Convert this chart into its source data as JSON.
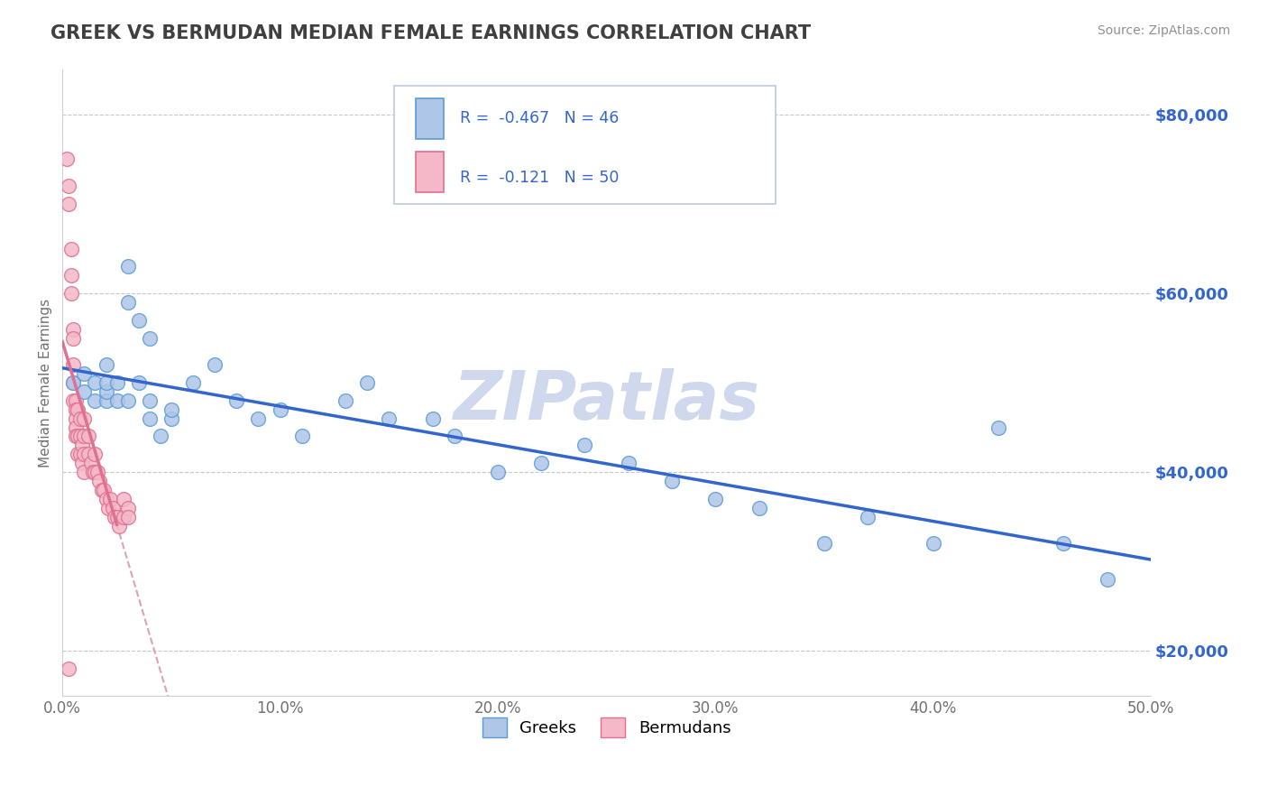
{
  "title": "GREEK VS BERMUDAN MEDIAN FEMALE EARNINGS CORRELATION CHART",
  "source_text": "Source: ZipAtlas.com",
  "ylabel": "Median Female Earnings",
  "xlim": [
    0.0,
    0.5
  ],
  "ylim": [
    15000,
    85000
  ],
  "xtick_labels": [
    "0.0%",
    "10.0%",
    "20.0%",
    "30.0%",
    "40.0%",
    "50.0%"
  ],
  "xtick_vals": [
    0.0,
    0.1,
    0.2,
    0.3,
    0.4,
    0.5
  ],
  "ytick_labels": [
    "$20,000",
    "$40,000",
    "$60,000",
    "$80,000"
  ],
  "ytick_vals": [
    20000,
    40000,
    60000,
    80000
  ],
  "greek_R": -0.467,
  "greek_N": 46,
  "bermudan_R": -0.121,
  "bermudan_N": 50,
  "greek_color": "#aec6e8",
  "greek_edge_color": "#5b9bd5",
  "bermudan_color": "#f4b8c8",
  "bermudan_edge_color": "#e07090",
  "greek_line_color": "#3366cc",
  "bermudan_line_color": "#e07090",
  "dashed_line_color": "#e0a0b8",
  "title_color": "#404040",
  "source_color": "#909090",
  "watermark_color": "#d0d8ed",
  "legend_color": "#3366cc",
  "background_color": "#ffffff",
  "greek_x": [
    0.005,
    0.01,
    0.01,
    0.015,
    0.015,
    0.02,
    0.02,
    0.02,
    0.02,
    0.025,
    0.025,
    0.03,
    0.03,
    0.03,
    0.035,
    0.035,
    0.04,
    0.04,
    0.04,
    0.045,
    0.05,
    0.05,
    0.06,
    0.07,
    0.08,
    0.09,
    0.1,
    0.11,
    0.13,
    0.14,
    0.15,
    0.17,
    0.18,
    0.2,
    0.22,
    0.24,
    0.26,
    0.28,
    0.3,
    0.32,
    0.35,
    0.37,
    0.4,
    0.43,
    0.46,
    0.48
  ],
  "greek_y": [
    50000,
    49000,
    51000,
    48000,
    50000,
    48000,
    49000,
    50000,
    52000,
    48000,
    50000,
    63000,
    59000,
    48000,
    57000,
    50000,
    55000,
    48000,
    46000,
    44000,
    46000,
    47000,
    50000,
    52000,
    48000,
    46000,
    47000,
    44000,
    48000,
    50000,
    46000,
    46000,
    44000,
    40000,
    41000,
    43000,
    41000,
    39000,
    37000,
    36000,
    32000,
    35000,
    32000,
    45000,
    32000,
    28000
  ],
  "bermudan_x": [
    0.002,
    0.003,
    0.003,
    0.004,
    0.004,
    0.004,
    0.005,
    0.005,
    0.005,
    0.005,
    0.005,
    0.006,
    0.006,
    0.006,
    0.006,
    0.006,
    0.007,
    0.007,
    0.007,
    0.008,
    0.008,
    0.008,
    0.009,
    0.009,
    0.01,
    0.01,
    0.01,
    0.01,
    0.012,
    0.012,
    0.013,
    0.014,
    0.015,
    0.015,
    0.016,
    0.017,
    0.018,
    0.019,
    0.02,
    0.021,
    0.022,
    0.023,
    0.024,
    0.025,
    0.026,
    0.028,
    0.028,
    0.03,
    0.03,
    0.003
  ],
  "bermudan_y": [
    75000,
    72000,
    70000,
    65000,
    62000,
    60000,
    56000,
    55000,
    52000,
    50000,
    48000,
    48000,
    47000,
    46000,
    45000,
    44000,
    47000,
    44000,
    42000,
    46000,
    44000,
    42000,
    43000,
    41000,
    46000,
    44000,
    42000,
    40000,
    44000,
    42000,
    41000,
    40000,
    42000,
    40000,
    40000,
    39000,
    38000,
    38000,
    37000,
    36000,
    37000,
    36000,
    35000,
    35000,
    34000,
    37000,
    35000,
    36000,
    35000,
    18000
  ]
}
